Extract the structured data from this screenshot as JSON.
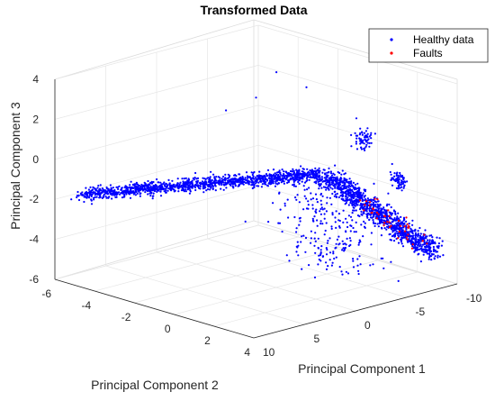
{
  "chart_data": {
    "type": "scatter",
    "projection": "3d",
    "title": "Transformed Data",
    "xlabel": "Principal Component 1",
    "ylabel": "Principal Component 2",
    "zlabel": "Principal Component 3",
    "x_ticks": [
      "-10",
      "-5",
      "0",
      "5",
      "10"
    ],
    "y_ticks": [
      "-6",
      "-4",
      "-2",
      "0",
      "2",
      "4"
    ],
    "z_ticks": [
      "-6",
      "-4",
      "-2",
      "0",
      "2",
      "4"
    ],
    "xlim": [
      -10,
      10
    ],
    "ylim": [
      -6,
      4
    ],
    "zlim": [
      -6,
      4
    ],
    "grid": true,
    "legend": {
      "location": "top-right"
    },
    "series": [
      {
        "name": "Healthy data",
        "color": "#0000ff",
        "marker": "dot"
      },
      {
        "name": "Faults",
        "color": "#ff0000",
        "marker": "dot"
      }
    ]
  }
}
